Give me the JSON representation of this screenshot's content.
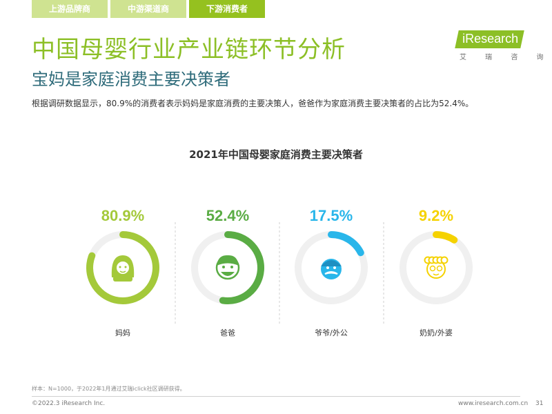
{
  "tabs": [
    {
      "label": "上游品牌商",
      "active": false
    },
    {
      "label": "中游渠道商",
      "active": false
    },
    {
      "label": "下游消费者",
      "active": true
    }
  ],
  "header": {
    "title": "中国母婴行业产业链环节分析",
    "subtitle": "宝妈是家庭消费主要决策者",
    "description": "根据调研数据显示，80.9%的消费者表示妈妈是家庭消费的主要决策人，爸爸作为家庭消费主要决策者的占比为52.4%。"
  },
  "logo": {
    "text": "iResearch",
    "sub": "艾 瑞 咨 询"
  },
  "chart_data": {
    "type": "donut",
    "title": "2021年中国母婴家庭消费主要决策者",
    "categories": [
      "妈妈",
      "爸爸",
      "爷爷/外公",
      "奶奶/外婆"
    ],
    "values": [
      80.9,
      52.4,
      17.5,
      9.2
    ],
    "labels": [
      "80.9%",
      "52.4%",
      "17.5%",
      "9.2%"
    ],
    "unit": "%",
    "colors": [
      "#a4c93a",
      "#5aac44",
      "#29b6ea",
      "#f5d200"
    ],
    "track_color": "#f0f0f0",
    "icons": [
      "mother-icon",
      "father-icon",
      "grandfather-icon",
      "grandmother-icon"
    ]
  },
  "footer": {
    "note": "样本：N=1000，于2022年1月通过艾瑞iclick社区调研获得。",
    "copyright": "©2022.3 iResearch Inc.",
    "website": "www.iresearch.com.cn",
    "page": "31"
  }
}
